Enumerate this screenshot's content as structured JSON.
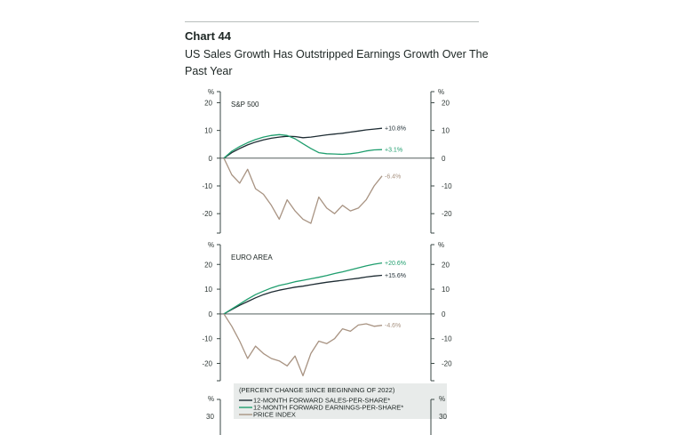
{
  "header": {
    "label": "Chart 44",
    "title": "US Sales Growth Has Outstripped Earnings Growth Over The Past Year"
  },
  "colors": {
    "sales": "#1e2c33",
    "earnings": "#1f9e6e",
    "price": "#a89382",
    "axis": "#3a4744",
    "zero": "#3a4744"
  },
  "chart_data": [
    {
      "type": "line",
      "title": "S&P 500",
      "unit_label": "%",
      "ylim": [
        -27,
        24
      ],
      "yticks": [
        20,
        10,
        0,
        -10,
        -20
      ],
      "x": [
        0,
        0.05,
        0.1,
        0.15,
        0.2,
        0.25,
        0.3,
        0.35,
        0.4,
        0.45,
        0.5,
        0.55,
        0.6,
        0.65,
        0.7,
        0.75,
        0.8,
        0.85,
        0.9,
        0.95,
        1.0
      ],
      "series": [
        {
          "name": "12-MONTH FORWARD SALES-PER-SHARE",
          "color_key": "sales",
          "end_label": "+10.8%",
          "values": [
            0,
            2,
            3.5,
            4.8,
            5.8,
            6.6,
            7.2,
            7.6,
            7.9,
            7.8,
            7.4,
            7.6,
            8.0,
            8.4,
            8.7,
            9.0,
            9.4,
            9.8,
            10.2,
            10.5,
            10.8
          ]
        },
        {
          "name": "12-MONTH FORWARD EARNINGS-PER-SHARE",
          "color_key": "earnings",
          "end_label": "+3.1%",
          "values": [
            0,
            2.5,
            4.2,
            5.6,
            6.7,
            7.6,
            8.2,
            8.5,
            8.2,
            7.0,
            5.2,
            3.5,
            2.0,
            1.6,
            1.5,
            1.4,
            1.6,
            2.0,
            2.6,
            3.0,
            3.1
          ]
        },
        {
          "name": "PRICE INDEX",
          "color_key": "price",
          "end_label": "-6.4%",
          "values": [
            0,
            -6,
            -9,
            -4,
            -11,
            -13,
            -17,
            -22,
            -15,
            -19,
            -22,
            -23.5,
            -14,
            -18,
            -20,
            -17,
            -19,
            -18,
            -15,
            -10,
            -6.4
          ]
        }
      ]
    },
    {
      "type": "line",
      "title": "EURO AREA",
      "unit_label": "%",
      "ylim": [
        -27,
        28
      ],
      "yticks": [
        20,
        10,
        0,
        -10,
        -20
      ],
      "x": [
        0,
        0.05,
        0.1,
        0.15,
        0.2,
        0.25,
        0.3,
        0.35,
        0.4,
        0.45,
        0.5,
        0.55,
        0.6,
        0.65,
        0.7,
        0.75,
        0.8,
        0.85,
        0.9,
        0.95,
        1.0
      ],
      "series": [
        {
          "name": "12-MONTH FORWARD SALES-PER-SHARE",
          "color_key": "sales",
          "end_label": "+15.6%",
          "values": [
            0,
            1.8,
            3.5,
            5.0,
            6.5,
            7.8,
            8.8,
            9.6,
            10.2,
            10.8,
            11.2,
            11.8,
            12.3,
            12.8,
            13.2,
            13.6,
            14.0,
            14.4,
            14.9,
            15.3,
            15.6
          ]
        },
        {
          "name": "12-MONTH FORWARD EARNINGS-PER-SHARE",
          "color_key": "earnings",
          "end_label": "+20.6%",
          "values": [
            0,
            2.0,
            4.0,
            6.0,
            7.8,
            9.2,
            10.5,
            11.5,
            12.2,
            13.0,
            13.6,
            14.2,
            14.8,
            15.5,
            16.3,
            17.0,
            17.8,
            18.6,
            19.4,
            20.1,
            20.6
          ]
        },
        {
          "name": "PRICE INDEX",
          "color_key": "price",
          "end_label": "-4.6%",
          "values": [
            0,
            -5,
            -11,
            -18,
            -13,
            -16,
            -18,
            -19,
            -21,
            -17,
            -25,
            -16,
            -11,
            -12,
            -10,
            -6,
            -7,
            -4.5,
            -4,
            -5,
            -4.6
          ]
        }
      ]
    }
  ],
  "legend": {
    "caption": "(PERCENT CHANGE SINCE BEGINNING OF 2022)",
    "items": [
      {
        "label": "12-MONTH FORWARD SALES-PER-SHARE*",
        "color_key": "sales"
      },
      {
        "label": "12-MONTH FORWARD EARNINGS-PER-SHARE*",
        "color_key": "earnings"
      },
      {
        "label": "PRICE INDEX",
        "color_key": "price"
      }
    ]
  },
  "third_panel_stub": {
    "unit_label": "%",
    "partial_tick": "30"
  }
}
